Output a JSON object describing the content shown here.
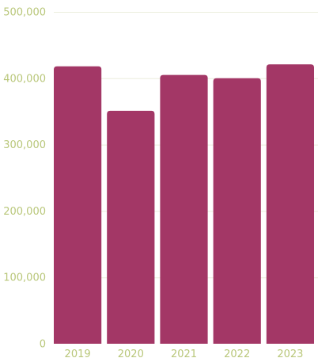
{
  "chart_data": {
    "type": "bar",
    "title": "",
    "xlabel": "",
    "ylabel": "",
    "categories": [
      "2019",
      "2020",
      "2021",
      "2022",
      "2023"
    ],
    "values": [
      418000,
      351000,
      405000,
      400000,
      421000
    ],
    "ylim": [
      0,
      500000
    ],
    "yticks": [
      0,
      100000,
      200000,
      300000,
      400000,
      500000
    ],
    "ytick_labels": [
      "0",
      "100,000",
      "200,000",
      "300,000",
      "400,000",
      "500,000"
    ],
    "grid": true,
    "legend": "none",
    "colors": {
      "bar": "#a33766",
      "tick_text": "#b9c77a",
      "grid": "#ebeede"
    }
  }
}
